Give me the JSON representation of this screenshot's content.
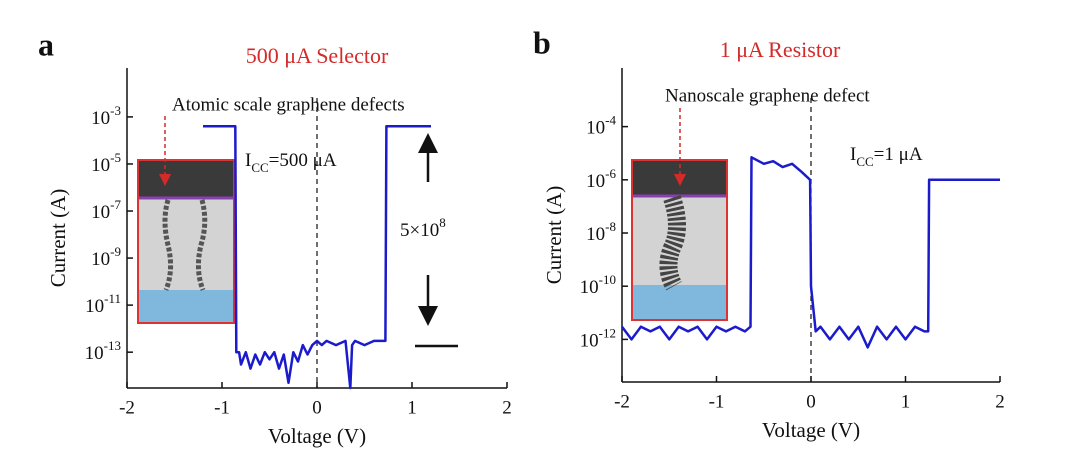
{
  "chart_data": [
    {
      "type": "line",
      "panel": "a",
      "title": "500 μA Selector",
      "x_label": "Voltage (V)",
      "y_label": "Current (A)",
      "log_y": true,
      "xlim": [
        -2,
        2
      ],
      "xticks": [
        -2,
        -1,
        0,
        1,
        2
      ],
      "ylim": [
        3e-15,
        0.12
      ],
      "yticks": [
        {
          "value": 0.001,
          "label": "10",
          "exponent": "-3"
        },
        {
          "value": 1e-05,
          "label": "10",
          "exponent": "-5"
        },
        {
          "value": 1e-07,
          "label": "10",
          "exponent": "-7"
        },
        {
          "value": 1e-09,
          "label": "10",
          "exponent": "-9"
        },
        {
          "value": 1e-11,
          "label": "10",
          "exponent": "-11"
        },
        {
          "value": 1e-13,
          "label": "10",
          "exponent": "-13"
        }
      ],
      "reference_x": 0,
      "series": [
        {
          "color": "#1b1bcc",
          "x": [
            -1.2,
            -0.86,
            -0.85,
            -0.82,
            -0.8,
            -0.75,
            -0.7,
            -0.65,
            -0.6,
            -0.55,
            -0.5,
            -0.45,
            -0.4,
            -0.35,
            -0.3,
            -0.25,
            -0.2,
            -0.15,
            -0.1,
            -0.05,
            0,
            0.05,
            0.1,
            0.2,
            0.3,
            0.35,
            0.37,
            0.4,
            0.5,
            0.6,
            0.7,
            0.72,
            0.73,
            1.2
          ],
          "values": [
            0.0004,
            0.0004,
            1e-13,
            1e-13,
            3e-14,
            1e-13,
            2e-14,
            8e-14,
            3e-14,
            1e-13,
            5e-14,
            1e-13,
            2e-14,
            8e-14,
            5e-15,
            1e-13,
            4e-14,
            2e-13,
            8e-14,
            2e-13,
            3e-13,
            2e-13,
            3e-13,
            2e-13,
            3e-13,
            3e-15,
            2e-13,
            3e-13,
            2e-13,
            3e-13,
            3e-13,
            3e-13,
            0.0004,
            0.0004
          ]
        }
      ],
      "annotations": {
        "inset_label": "Atomic scale graphene defects",
        "icc": {
          "base": "I",
          "sub": "CC",
          "rest": "=500 μA"
        },
        "ratio": {
          "base": "5×10",
          "exponent": "8"
        }
      }
    },
    {
      "type": "line",
      "panel": "b",
      "title": "1 μA Resistor",
      "x_label": "Voltage (V)",
      "y_label": "Current (A)",
      "log_y": true,
      "xlim": [
        -2,
        2
      ],
      "xticks": [
        -2,
        -1,
        0,
        1,
        2
      ],
      "ylim": [
        2.5e-14,
        0.016
      ],
      "yticks": [
        {
          "value": 0.0001,
          "label": "10",
          "exponent": "-4"
        },
        {
          "value": 1e-06,
          "label": "10",
          "exponent": "-6"
        },
        {
          "value": 1e-08,
          "label": "10",
          "exponent": "-8"
        },
        {
          "value": 1e-10,
          "label": "10",
          "exponent": "-10"
        },
        {
          "value": 1e-12,
          "label": "10",
          "exponent": "-12"
        }
      ],
      "reference_x": 0,
      "series": [
        {
          "color": "#1b1bcc",
          "x": [
            -2,
            -1.9,
            -1.8,
            -1.7,
            -1.6,
            -1.5,
            -1.4,
            -1.3,
            -1.2,
            -1.1,
            -1,
            -0.9,
            -0.8,
            -0.7,
            -0.64,
            -0.63,
            -0.5,
            -0.4,
            -0.3,
            -0.2,
            -0.1,
            -0.01,
            0,
            0.05,
            0.1,
            0.2,
            0.3,
            0.4,
            0.5,
            0.6,
            0.7,
            0.8,
            0.9,
            1,
            1.1,
            1.2,
            1.24,
            1.25,
            2
          ],
          "values": [
            3e-12,
            1e-12,
            3e-12,
            2e-12,
            3e-12,
            1e-12,
            3e-12,
            2e-12,
            3e-12,
            1e-12,
            3e-12,
            2e-12,
            3e-12,
            2e-12,
            3e-12,
            7e-06,
            4e-06,
            5e-06,
            3e-06,
            4e-06,
            2e-06,
            1e-06,
            1e-10,
            2e-12,
            3e-12,
            1e-12,
            3e-12,
            1e-12,
            3e-12,
            5e-13,
            3e-12,
            1e-12,
            3e-12,
            1e-12,
            3e-12,
            2e-12,
            2e-12,
            1e-06,
            1e-06
          ]
        }
      ],
      "annotations": {
        "inset_label": "Nanoscale graphene defect",
        "icc": {
          "base": "I",
          "sub": "CC",
          "rest": "=1 μA"
        }
      }
    }
  ]
}
